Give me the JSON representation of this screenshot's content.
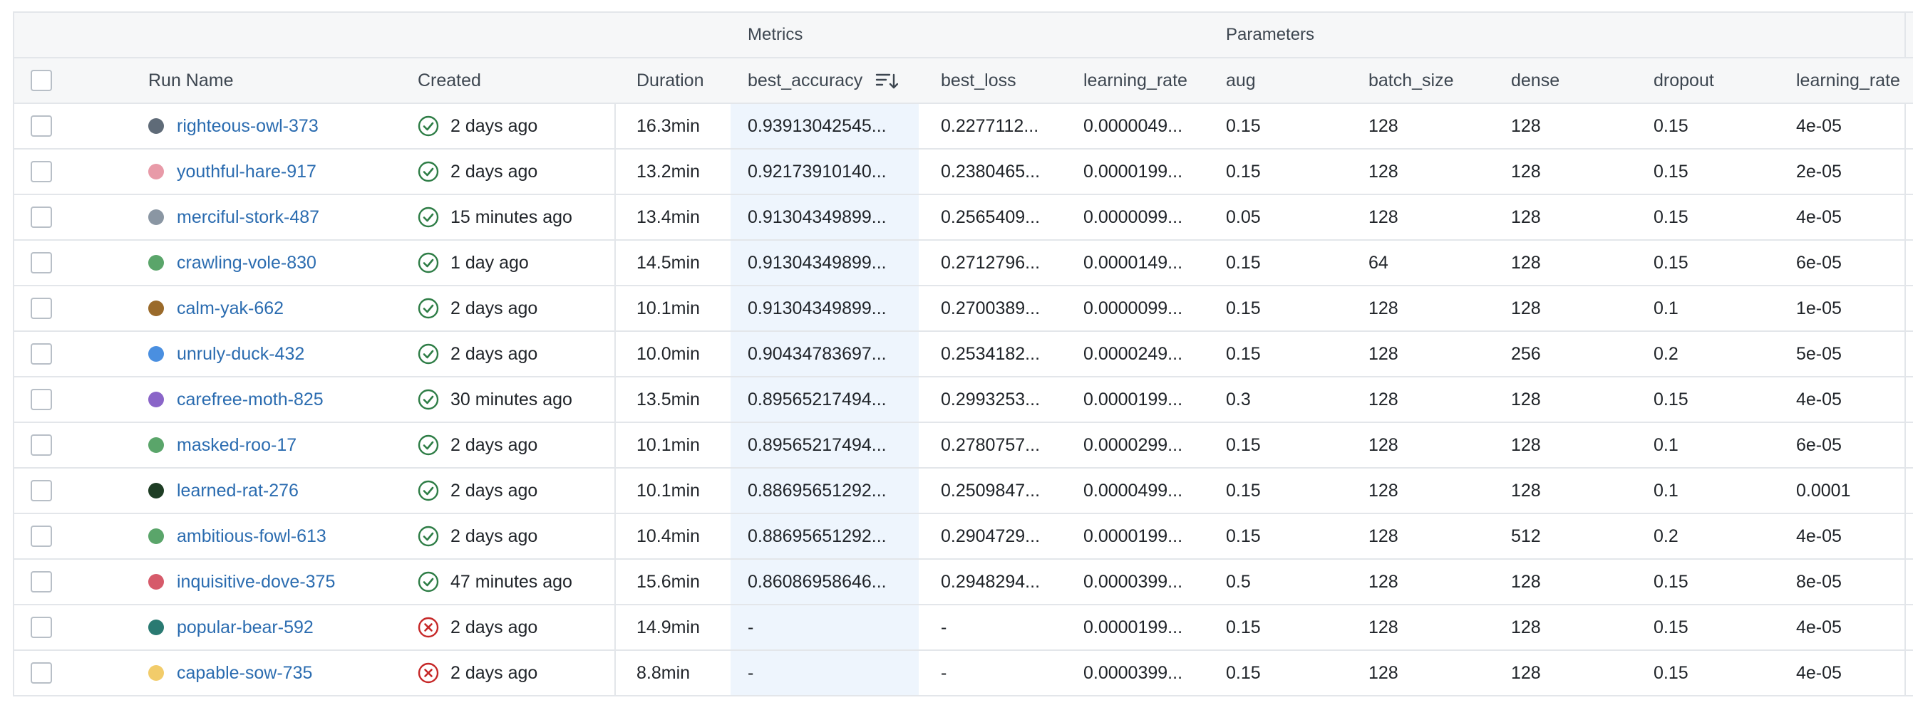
{
  "group_headers": {
    "metrics": "Metrics",
    "parameters": "Parameters"
  },
  "columns": {
    "run_name": "Run Name",
    "created": "Created",
    "duration": "Duration",
    "best_accuracy": "best_accuracy",
    "best_loss": "best_loss",
    "metric_learning_rate": "learning_rate",
    "aug": "aug",
    "batch_size": "batch_size",
    "dense": "dense",
    "dropout": "dropout",
    "param_learning_rate": "learning_rate"
  },
  "sort": {
    "column": "best_accuracy",
    "icon": "sort-descending-icon"
  },
  "colors": {
    "link": "#2b6cb0",
    "success": "#2e7d46",
    "failure": "#c62828",
    "highlight": "#eef5fd"
  },
  "rows": [
    {
      "name": "righteous-owl-373",
      "color": "#5f6b78",
      "status": "success",
      "created": "2 days ago",
      "duration": "16.3min",
      "best_accuracy": "0.93913042545...",
      "best_loss": "0.2277112...",
      "m_lr": "0.0000049...",
      "aug": "0.15",
      "batch_size": "128",
      "dense": "128",
      "dropout": "0.15",
      "p_lr": "4e-05"
    },
    {
      "name": "youthful-hare-917",
      "color": "#e89aa8",
      "status": "success",
      "created": "2 days ago",
      "duration": "13.2min",
      "best_accuracy": "0.92173910140...",
      "best_loss": "0.2380465...",
      "m_lr": "0.0000199...",
      "aug": "0.15",
      "batch_size": "128",
      "dense": "128",
      "dropout": "0.15",
      "p_lr": "2e-05"
    },
    {
      "name": "merciful-stork-487",
      "color": "#8a96a3",
      "status": "success",
      "created": "15 minutes ago",
      "duration": "13.4min",
      "best_accuracy": "0.91304349899...",
      "best_loss": "0.2565409...",
      "m_lr": "0.0000099...",
      "aug": "0.05",
      "batch_size": "128",
      "dense": "128",
      "dropout": "0.15",
      "p_lr": "4e-05"
    },
    {
      "name": "crawling-vole-830",
      "color": "#5aa56a",
      "status": "success",
      "created": "1 day ago",
      "duration": "14.5min",
      "best_accuracy": "0.91304349899...",
      "best_loss": "0.2712796...",
      "m_lr": "0.0000149...",
      "aug": "0.15",
      "batch_size": "64",
      "dense": "128",
      "dropout": "0.15",
      "p_lr": "6e-05"
    },
    {
      "name": "calm-yak-662",
      "color": "#9a6a2a",
      "status": "success",
      "created": "2 days ago",
      "duration": "10.1min",
      "best_accuracy": "0.91304349899...",
      "best_loss": "0.2700389...",
      "m_lr": "0.0000099...",
      "aug": "0.15",
      "batch_size": "128",
      "dense": "128",
      "dropout": "0.1",
      "p_lr": "1e-05"
    },
    {
      "name": "unruly-duck-432",
      "color": "#4a8fe0",
      "status": "success",
      "created": "2 days ago",
      "duration": "10.0min",
      "best_accuracy": "0.90434783697...",
      "best_loss": "0.2534182...",
      "m_lr": "0.0000249...",
      "aug": "0.15",
      "batch_size": "128",
      "dense": "256",
      "dropout": "0.2",
      "p_lr": "5e-05"
    },
    {
      "name": "carefree-moth-825",
      "color": "#8a65c8",
      "status": "success",
      "created": "30 minutes ago",
      "duration": "13.5min",
      "best_accuracy": "0.89565217494...",
      "best_loss": "0.2993253...",
      "m_lr": "0.0000199...",
      "aug": "0.3",
      "batch_size": "128",
      "dense": "128",
      "dropout": "0.15",
      "p_lr": "4e-05"
    },
    {
      "name": "masked-roo-17",
      "color": "#5aa56a",
      "status": "success",
      "created": "2 days ago",
      "duration": "10.1min",
      "best_accuracy": "0.89565217494...",
      "best_loss": "0.2780757...",
      "m_lr": "0.0000299...",
      "aug": "0.15",
      "batch_size": "128",
      "dense": "128",
      "dropout": "0.1",
      "p_lr": "6e-05"
    },
    {
      "name": "learned-rat-276",
      "color": "#1e3d24",
      "status": "success",
      "created": "2 days ago",
      "duration": "10.1min",
      "best_accuracy": "0.88695651292...",
      "best_loss": "0.2509847...",
      "m_lr": "0.0000499...",
      "aug": "0.15",
      "batch_size": "128",
      "dense": "128",
      "dropout": "0.1",
      "p_lr": "0.0001"
    },
    {
      "name": "ambitious-fowl-613",
      "color": "#5aa56a",
      "status": "success",
      "created": "2 days ago",
      "duration": "10.4min",
      "best_accuracy": "0.88695651292...",
      "best_loss": "0.2904729...",
      "m_lr": "0.0000199...",
      "aug": "0.15",
      "batch_size": "128",
      "dense": "512",
      "dropout": "0.2",
      "p_lr": "4e-05"
    },
    {
      "name": "inquisitive-dove-375",
      "color": "#d65a6a",
      "status": "success",
      "created": "47 minutes ago",
      "duration": "15.6min",
      "best_accuracy": "0.86086958646...",
      "best_loss": "0.2948294...",
      "m_lr": "0.0000399...",
      "aug": "0.5",
      "batch_size": "128",
      "dense": "128",
      "dropout": "0.15",
      "p_lr": "8e-05"
    },
    {
      "name": "popular-bear-592",
      "color": "#2a7a72",
      "status": "failure",
      "created": "2 days ago",
      "duration": "14.9min",
      "best_accuracy": "-",
      "best_loss": "-",
      "m_lr": "0.0000199...",
      "aug": "0.15",
      "batch_size": "128",
      "dense": "128",
      "dropout": "0.15",
      "p_lr": "4e-05"
    },
    {
      "name": "capable-sow-735",
      "color": "#f2cc6a",
      "status": "failure",
      "created": "2 days ago",
      "duration": "8.8min",
      "best_accuracy": "-",
      "best_loss": "-",
      "m_lr": "0.0000399...",
      "aug": "0.15",
      "batch_size": "128",
      "dense": "128",
      "dropout": "0.15",
      "p_lr": "4e-05"
    }
  ]
}
